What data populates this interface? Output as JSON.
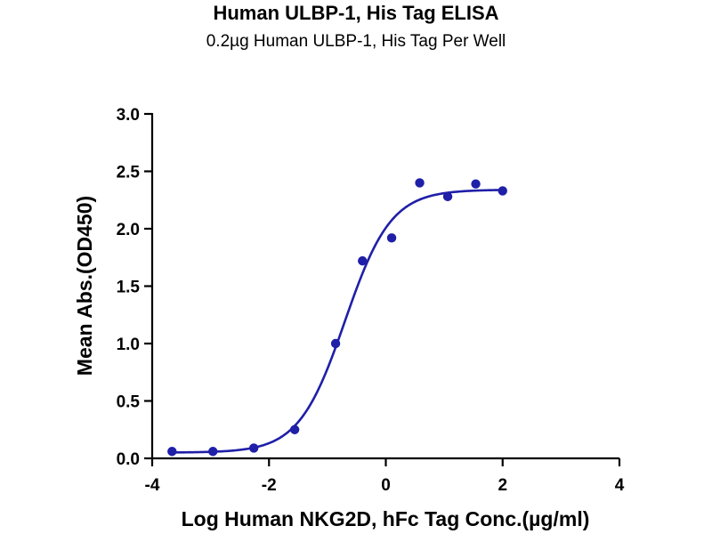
{
  "chart_data": {
    "type": "scatter",
    "title": "Human ULBP-1, His Tag ELISA",
    "subtitle": "0.2µg Human ULBP-1, His Tag Per Well",
    "xlabel": "Log Human NKG2D, hFc Tag Conc.(µg/ml)",
    "ylabel": "Mean Abs.(OD450)",
    "xlim": [
      -4,
      4
    ],
    "ylim": [
      0,
      3.0
    ],
    "xticks": [
      "-4",
      "-2",
      "0",
      "2",
      "4"
    ],
    "yticks": [
      "0.0",
      "0.5",
      "1.0",
      "1.5",
      "2.0",
      "2.5",
      "3.0"
    ],
    "grid": false,
    "series": [
      {
        "color": "#1f1fa8",
        "points": [
          {
            "x": -3.66,
            "y": 0.06
          },
          {
            "x": -2.96,
            "y": 0.06
          },
          {
            "x": -2.26,
            "y": 0.09
          },
          {
            "x": -1.56,
            "y": 0.25
          },
          {
            "x": -0.86,
            "y": 1.0
          },
          {
            "x": -0.4,
            "y": 1.72
          },
          {
            "x": 0.1,
            "y": 1.92
          },
          {
            "x": 0.58,
            "y": 2.4
          },
          {
            "x": 1.06,
            "y": 2.28
          },
          {
            "x": 1.54,
            "y": 2.39
          },
          {
            "x": 2.0,
            "y": 2.33
          }
        ],
        "fit": {
          "model": "4PL",
          "bottom": 0.05,
          "top": 2.34,
          "logEC50": -0.7,
          "hill": 1.1,
          "x_range": [
            -3.66,
            2.0
          ]
        }
      }
    ]
  }
}
